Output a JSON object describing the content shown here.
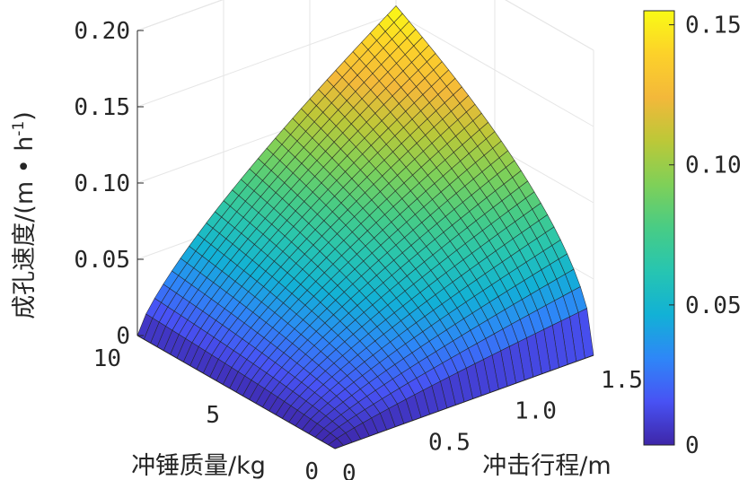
{
  "chart_data": {
    "type": "surface",
    "title": "",
    "zlabel": "成孔速度/(m·h⁻¹)",
    "zlabel_parts": {
      "main": "成孔速度/(m • h",
      "sup": "-1",
      "end": ")"
    },
    "xlabel": "冲锤质量/kg",
    "ylabel": "冲击行程/m",
    "x_axis": {
      "lim": [
        0,
        10
      ],
      "ticks": [
        0,
        5,
        10
      ],
      "tick_labels": [
        "0",
        "5",
        "10"
      ]
    },
    "y_axis": {
      "lim": [
        0,
        1.5
      ],
      "ticks": [
        0,
        0.5,
        1.0,
        1.5
      ],
      "tick_labels": [
        "0",
        "0.5",
        "1.0",
        "1.5"
      ]
    },
    "z_axis": {
      "lim": [
        0,
        0.2
      ],
      "ticks": [
        0,
        0.05,
        0.1,
        0.15,
        0.2
      ],
      "tick_labels": [
        "0",
        "0.05",
        "0.10",
        "0.15",
        "0.20"
      ]
    },
    "grid": true,
    "colormap": "parula",
    "colorbar": {
      "lim": [
        0,
        0.155
      ],
      "ticks": [
        0,
        0.05,
        0.1,
        0.15
      ],
      "tick_labels": [
        "0",
        "0.05",
        "0.10",
        "0.15"
      ],
      "placement": "right"
    },
    "surface": {
      "formula": "z = 0.155 * (x/10)^0.5 * (y/1.5)^0.75",
      "x_range": [
        0,
        10
      ],
      "y_range": [
        0,
        1.5
      ],
      "z_at_corners": {
        "x0_y0": 0,
        "x10_y0": 0,
        "x0_y1.5": 0,
        "x10_y1.5": 0.155
      },
      "grid_divisions": 30
    }
  }
}
